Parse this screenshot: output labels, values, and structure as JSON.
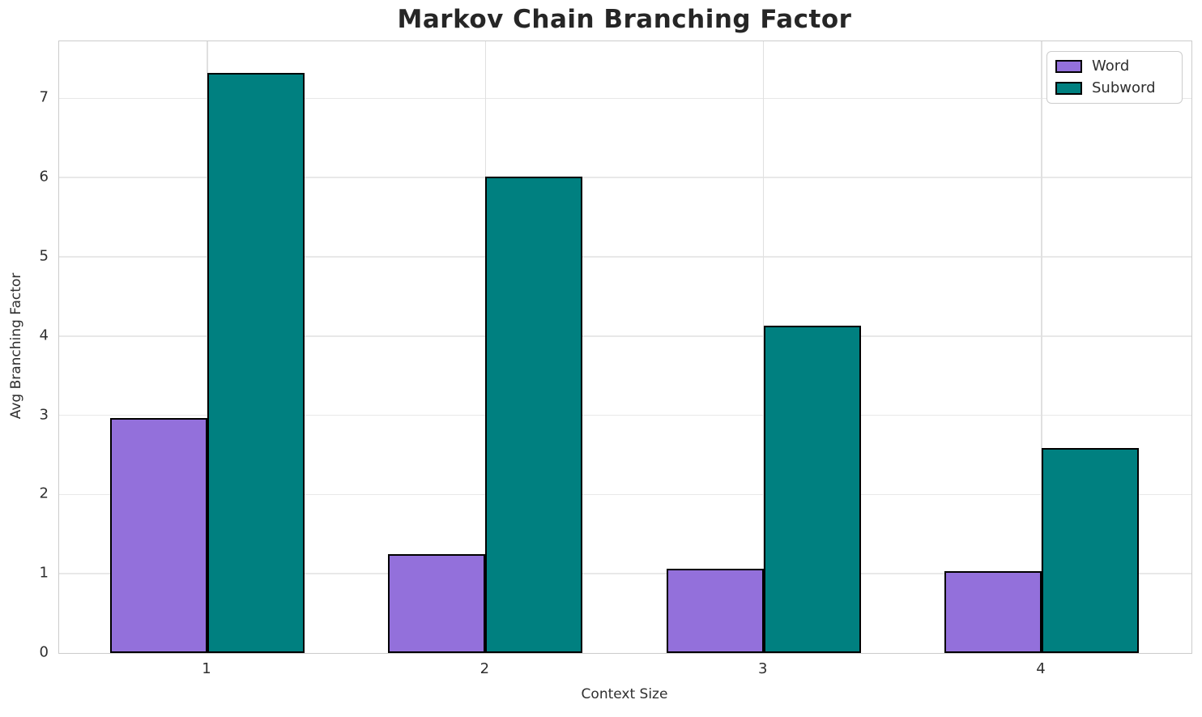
{
  "title": "Markov Chain Branching Factor",
  "chart_data": {
    "type": "bar",
    "title": "Markov Chain Branching Factor",
    "xlabel": "Context Size",
    "ylabel": "Avg Branching Factor",
    "categories": [
      "1",
      "2",
      "3",
      "4"
    ],
    "series": [
      {
        "name": "Word",
        "color": "#9370DB",
        "values": [
          2.97,
          1.25,
          1.06,
          1.03
        ]
      },
      {
        "name": "Subword",
        "color": "#008080",
        "values": [
          7.32,
          6.01,
          4.13,
          2.59
        ]
      }
    ],
    "ylim": [
      0,
      7.72
    ],
    "yticks": [
      0,
      1,
      2,
      3,
      4,
      5,
      6,
      7
    ],
    "grid": true,
    "bar_edge_color": "#000000",
    "legend_position": "upper right"
  },
  "colors": {
    "grid": "#e8e8e8",
    "spine": "#cccccc",
    "text": "#2f2f2f"
  }
}
